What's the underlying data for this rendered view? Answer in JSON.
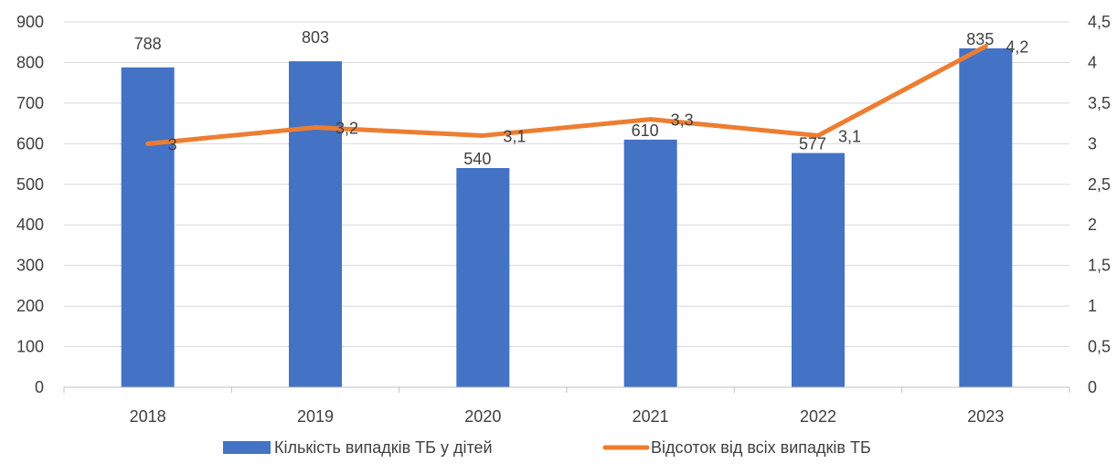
{
  "chart_data": {
    "type": "bar",
    "categories": [
      "2018",
      "2019",
      "2020",
      "2021",
      "2022",
      "2023"
    ],
    "series": [
      {
        "name": "Кількість випадків ТБ у дітей",
        "kind": "bar",
        "axis": "left",
        "values": [
          788,
          803,
          540,
          610,
          577,
          835
        ],
        "labels": [
          "788",
          "803",
          "540",
          "610",
          "577",
          "835"
        ],
        "color": "#4472C4"
      },
      {
        "name": "Відсоток від всіх випадків ТБ",
        "kind": "line",
        "axis": "right",
        "values": [
          3,
          3.2,
          3.1,
          3.3,
          3.1,
          4.2
        ],
        "labels": [
          "3",
          "3,2",
          "3,1",
          "3,3",
          "3,1",
          "4,2"
        ],
        "color": "#ED7D31"
      }
    ],
    "y_left": {
      "range": [
        0,
        900
      ],
      "ticks": [
        0,
        100,
        200,
        300,
        400,
        500,
        600,
        700,
        800,
        900
      ],
      "tick_labels": [
        "0",
        "100",
        "200",
        "300",
        "400",
        "500",
        "600",
        "700",
        "800",
        "900"
      ]
    },
    "y_right": {
      "range": [
        0,
        4.5
      ],
      "ticks": [
        0,
        0.5,
        1,
        1.5,
        2,
        2.5,
        3,
        3.5,
        4,
        4.5
      ],
      "tick_labels": [
        "0",
        "0,5",
        "1",
        "1,5",
        "2",
        "2,5",
        "3",
        "3,5",
        "4",
        "4,5"
      ]
    },
    "grid": true,
    "legend_position": "bottom"
  }
}
